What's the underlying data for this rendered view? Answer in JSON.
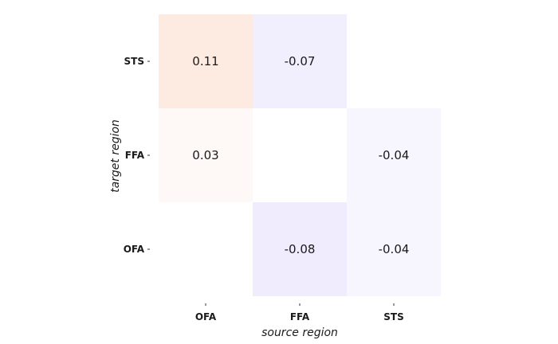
{
  "chart_data": {
    "type": "heatmap",
    "xlabel": "source region",
    "ylabel": "target region",
    "x_categories": [
      "OFA",
      "FFA",
      "STS"
    ],
    "y_categories": [
      "STS",
      "FFA",
      "OFA"
    ],
    "cells": [
      {
        "x": "OFA",
        "y": "STS",
        "value": 0.11,
        "label": "0.11"
      },
      {
        "x": "FFA",
        "y": "STS",
        "value": -0.07,
        "label": "-0.07"
      },
      {
        "x": "OFA",
        "y": "FFA",
        "value": 0.03,
        "label": "0.03"
      },
      {
        "x": "STS",
        "y": "FFA",
        "value": -0.04,
        "label": "-0.04"
      },
      {
        "x": "FFA",
        "y": "OFA",
        "value": -0.08,
        "label": "-0.08"
      },
      {
        "x": "STS",
        "y": "OFA",
        "value": -0.04,
        "label": "-0.04"
      }
    ],
    "colors": {
      "positive": "#f07a3c",
      "negative": "#7a5cf0",
      "background": "#ffffff"
    },
    "grid": false
  }
}
